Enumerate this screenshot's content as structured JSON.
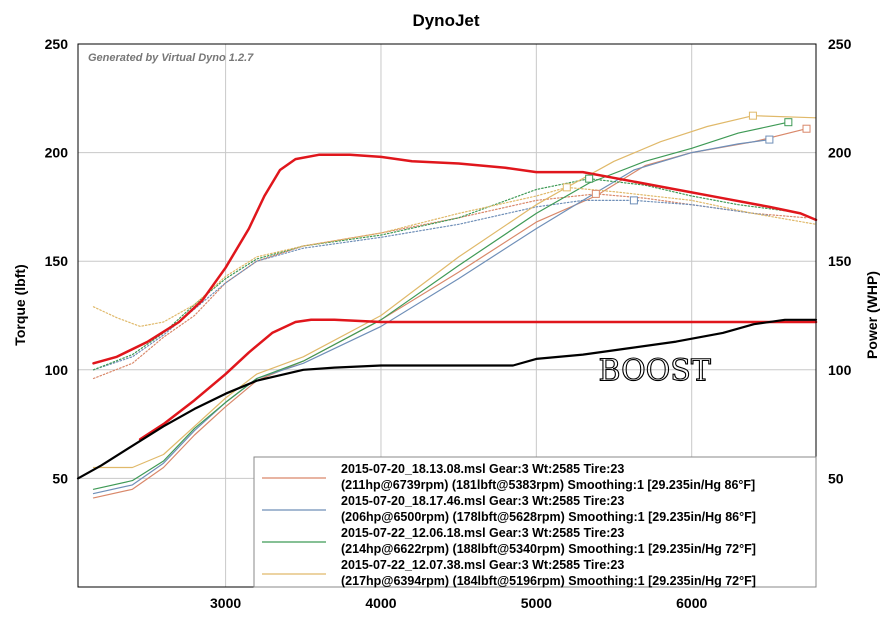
{
  "chart_data": {
    "type": "line",
    "title": "DynoJet",
    "watermark": "Generated by Virtual Dyno 1.2.7",
    "xlabel": "",
    "ylabel_left": "Torque (lbft)",
    "ylabel_right": "Power (WHP)",
    "xlim": [
      2050,
      6800
    ],
    "ylim": [
      0,
      250
    ],
    "x_ticks": [
      3000,
      4000,
      5000,
      6000
    ],
    "y_ticks_left": [
      50,
      100,
      150,
      200,
      250
    ],
    "y_ticks_right": [
      50,
      100,
      150,
      200,
      250
    ],
    "grid": true,
    "legend_position": "bottom-right",
    "legend": [
      {
        "line1": "2015-07-20_18.13.08.msl Gear:3 Wt:2585 Tire:23",
        "line2": "(211hp@6739rpm) (181lbft@5383rpm) Smoothing:1 [29.235in/Hg 86°F]",
        "color": "#d9886a"
      },
      {
        "line1": "2015-07-20_18.17.46.msl Gear:3 Wt:2585 Tire:23",
        "line2": "(206hp@6500rpm) (178lbft@5628rpm) Smoothing:1 [29.235in/Hg 86°F]",
        "color": "#6f8fb8"
      },
      {
        "line1": "2015-07-22_12.06.18.msl Gear:3 Wt:2585 Tire:23",
        "line2": "(214hp@6622rpm) (188lbft@5340rpm) Smoothing:1 [29.235in/Hg 72°F]",
        "color": "#3f9a56"
      },
      {
        "line1": "2015-07-22_12.07.38.msl Gear:3 Wt:2585 Tire:23",
        "line2": "(217hp@6394rpm) (184lbft@5196rpm) Smoothing:1 [29.235in/Hg 72°F]",
        "color": "#e0b96a"
      }
    ],
    "series": [
      {
        "name": "run1-power",
        "color": "#d9886a",
        "dash": false,
        "points": [
          [
            2150,
            41
          ],
          [
            2400,
            45
          ],
          [
            2600,
            55
          ],
          [
            2800,
            70
          ],
          [
            3000,
            83
          ],
          [
            3200,
            95
          ],
          [
            3500,
            104
          ],
          [
            4000,
            123
          ],
          [
            4500,
            145
          ],
          [
            5000,
            168
          ],
          [
            5383,
            180
          ],
          [
            5700,
            194
          ],
          [
            6000,
            200
          ],
          [
            6400,
            205
          ],
          [
            6739,
            211
          ]
        ]
      },
      {
        "name": "run1-torque",
        "color": "#d9886a",
        "dash": true,
        "points": [
          [
            2150,
            96
          ],
          [
            2400,
            103
          ],
          [
            2600,
            115
          ],
          [
            2800,
            125
          ],
          [
            3000,
            140
          ],
          [
            3200,
            150
          ],
          [
            3500,
            157
          ],
          [
            4000,
            163
          ],
          [
            4500,
            170
          ],
          [
            5000,
            178
          ],
          [
            5383,
            181
          ],
          [
            5700,
            179
          ],
          [
            6000,
            176
          ],
          [
            6400,
            172
          ],
          [
            6739,
            170
          ]
        ]
      },
      {
        "name": "run2-power",
        "color": "#6f8fb8",
        "dash": false,
        "points": [
          [
            2150,
            43
          ],
          [
            2400,
            47
          ],
          [
            2600,
            57
          ],
          [
            2800,
            72
          ],
          [
            3000,
            85
          ],
          [
            3200,
            96
          ],
          [
            3500,
            103
          ],
          [
            4000,
            120
          ],
          [
            4500,
            142
          ],
          [
            5000,
            165
          ],
          [
            5300,
            178
          ],
          [
            5628,
            192
          ],
          [
            6000,
            200
          ],
          [
            6300,
            204
          ],
          [
            6500,
            206
          ]
        ]
      },
      {
        "name": "run2-torque",
        "color": "#6f8fb8",
        "dash": true,
        "points": [
          [
            2150,
            100
          ],
          [
            2400,
            106
          ],
          [
            2600,
            116
          ],
          [
            2800,
            128
          ],
          [
            3000,
            140
          ],
          [
            3200,
            150
          ],
          [
            3500,
            156
          ],
          [
            4000,
            161
          ],
          [
            4500,
            167
          ],
          [
            5000,
            175
          ],
          [
            5300,
            178
          ],
          [
            5628,
            178
          ],
          [
            6000,
            176
          ],
          [
            6300,
            173
          ],
          [
            6500,
            171
          ]
        ]
      },
      {
        "name": "run3-power",
        "color": "#3f9a56",
        "dash": false,
        "points": [
          [
            2150,
            45
          ],
          [
            2400,
            49
          ],
          [
            2600,
            58
          ],
          [
            2800,
            73
          ],
          [
            3000,
            85
          ],
          [
            3200,
            96
          ],
          [
            3500,
            104
          ],
          [
            4000,
            123
          ],
          [
            4500,
            148
          ],
          [
            5000,
            172
          ],
          [
            5340,
            186
          ],
          [
            5700,
            196
          ],
          [
            6000,
            202
          ],
          [
            6300,
            209
          ],
          [
            6622,
            214
          ]
        ]
      },
      {
        "name": "run3-torque",
        "color": "#3f9a56",
        "dash": true,
        "points": [
          [
            2150,
            100
          ],
          [
            2400,
            107
          ],
          [
            2600,
            117
          ],
          [
            2800,
            130
          ],
          [
            3000,
            142
          ],
          [
            3200,
            151
          ],
          [
            3500,
            157
          ],
          [
            4000,
            162
          ],
          [
            4500,
            170
          ],
          [
            5000,
            183
          ],
          [
            5340,
            188
          ],
          [
            5700,
            185
          ],
          [
            6000,
            180
          ],
          [
            6300,
            176
          ],
          [
            6622,
            173
          ]
        ]
      },
      {
        "name": "run4-power",
        "color": "#e0b96a",
        "dash": false,
        "points": [
          [
            2150,
            55
          ],
          [
            2400,
            55
          ],
          [
            2600,
            61
          ],
          [
            2800,
            74
          ],
          [
            3000,
            87
          ],
          [
            3200,
            98
          ],
          [
            3500,
            106
          ],
          [
            4000,
            125
          ],
          [
            4500,
            152
          ],
          [
            5000,
            176
          ],
          [
            5196,
            184
          ],
          [
            5500,
            196
          ],
          [
            5800,
            205
          ],
          [
            6100,
            212
          ],
          [
            6394,
            217
          ],
          [
            6800,
            216
          ]
        ]
      },
      {
        "name": "run4-torque",
        "color": "#e0b96a",
        "dash": true,
        "points": [
          [
            2150,
            129
          ],
          [
            2300,
            124
          ],
          [
            2450,
            120
          ],
          [
            2600,
            122
          ],
          [
            2800,
            130
          ],
          [
            3000,
            143
          ],
          [
            3200,
            152
          ],
          [
            3500,
            157
          ],
          [
            4000,
            163
          ],
          [
            4500,
            172
          ],
          [
            5000,
            180
          ],
          [
            5196,
            184
          ],
          [
            5500,
            182
          ],
          [
            6000,
            178
          ],
          [
            6394,
            172
          ],
          [
            6800,
            167
          ]
        ]
      },
      {
        "name": "red-power",
        "color": "#e0161c",
        "dash": false,
        "width": 2.5,
        "points": [
          [
            2450,
            68
          ],
          [
            2600,
            75
          ],
          [
            2800,
            86
          ],
          [
            3000,
            98
          ],
          [
            3150,
            108
          ],
          [
            3300,
            117
          ],
          [
            3450,
            122
          ],
          [
            3550,
            123
          ],
          [
            3700,
            123
          ],
          [
            4000,
            122
          ],
          [
            5000,
            122
          ],
          [
            6000,
            122
          ],
          [
            6800,
            122
          ]
        ]
      },
      {
        "name": "red-torque",
        "color": "#e0161c",
        "dash": false,
        "width": 2.5,
        "points": [
          [
            2150,
            103
          ],
          [
            2300,
            106
          ],
          [
            2500,
            113
          ],
          [
            2700,
            122
          ],
          [
            2850,
            132
          ],
          [
            3000,
            147
          ],
          [
            3150,
            165
          ],
          [
            3250,
            180
          ],
          [
            3350,
            192
          ],
          [
            3450,
            197
          ],
          [
            3600,
            199
          ],
          [
            3800,
            199
          ],
          [
            4000,
            198
          ],
          [
            4200,
            196
          ],
          [
            4500,
            195
          ],
          [
            4800,
            193
          ],
          [
            5000,
            191
          ],
          [
            5300,
            191
          ],
          [
            5600,
            187
          ],
          [
            5900,
            183
          ],
          [
            6200,
            179
          ],
          [
            6500,
            175
          ],
          [
            6700,
            172
          ],
          [
            6800,
            169
          ]
        ]
      },
      {
        "name": "black-boost",
        "color": "#000000",
        "dash": false,
        "width": 2.2,
        "points": [
          [
            2050,
            50
          ],
          [
            2200,
            56
          ],
          [
            2400,
            65
          ],
          [
            2600,
            74
          ],
          [
            2800,
            82
          ],
          [
            3000,
            89
          ],
          [
            3200,
            95
          ],
          [
            3500,
            100
          ],
          [
            3700,
            101
          ],
          [
            4000,
            102
          ],
          [
            4500,
            102
          ],
          [
            4850,
            102
          ],
          [
            5000,
            105
          ],
          [
            5300,
            107
          ],
          [
            5600,
            110
          ],
          [
            5900,
            113
          ],
          [
            6200,
            117
          ],
          [
            6400,
            121
          ],
          [
            6600,
            123
          ],
          [
            6800,
            123
          ]
        ]
      }
    ],
    "peak_markers": [
      {
        "x": 6739,
        "y": 211,
        "color": "#d9886a"
      },
      {
        "x": 5383,
        "y": 181,
        "color": "#d9886a"
      },
      {
        "x": 6500,
        "y": 206,
        "color": "#6f8fb8"
      },
      {
        "x": 5628,
        "y": 178,
        "color": "#6f8fb8"
      },
      {
        "x": 6622,
        "y": 214,
        "color": "#3f9a56"
      },
      {
        "x": 5340,
        "y": 188,
        "color": "#3f9a56"
      },
      {
        "x": 6394,
        "y": 217,
        "color": "#e0b96a"
      },
      {
        "x": 5196,
        "y": 184,
        "color": "#e0b96a"
      }
    ],
    "annotation": {
      "text": "BOOST",
      "x": 5400,
      "y": 95
    }
  }
}
